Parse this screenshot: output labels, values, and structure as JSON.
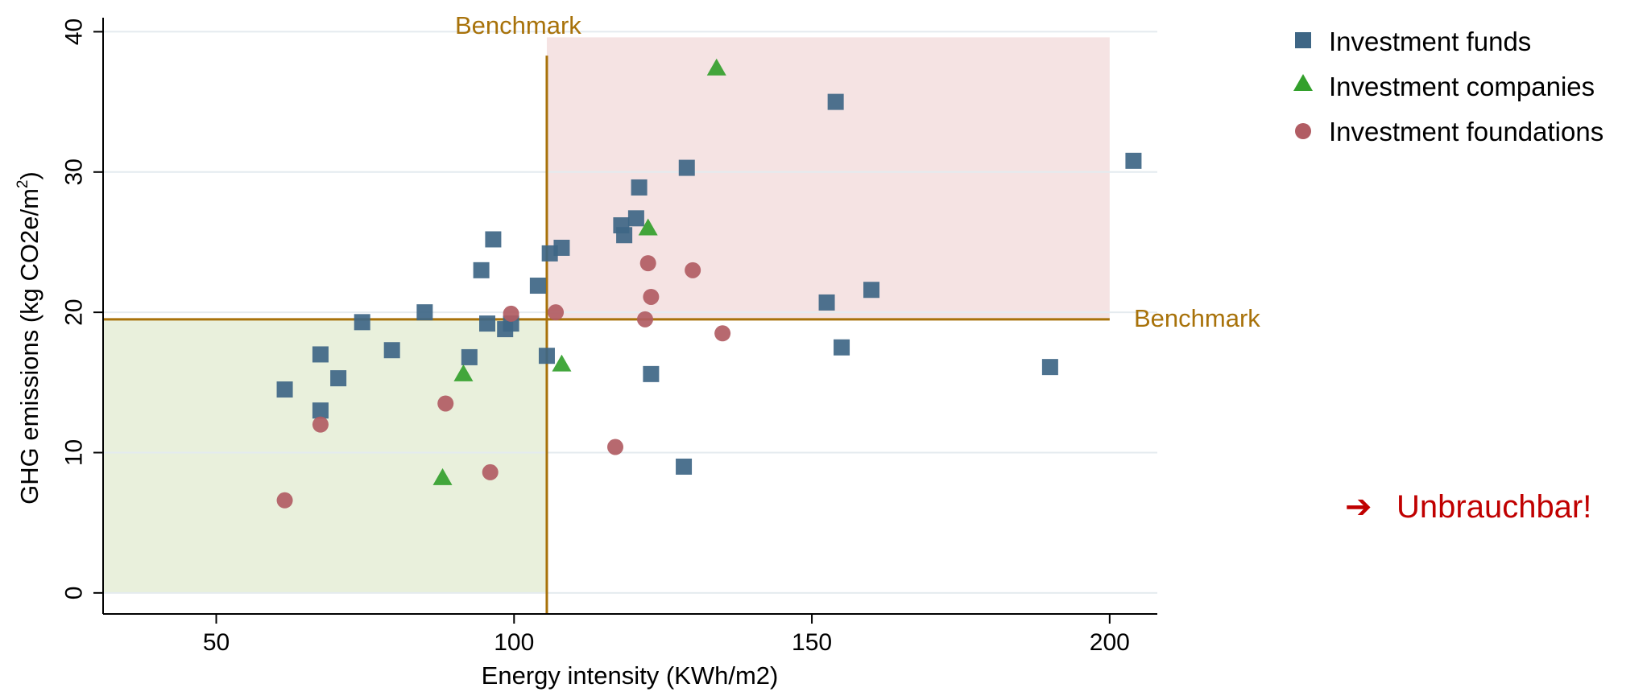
{
  "chart_data": {
    "type": "scatter",
    "xlabel": "Energy intensity (KWh/m2)",
    "ylabel_main": "GHG emissions (kg CO2e/m",
    "ylabel_sup": "2",
    "ylabel_close": ")",
    "xlim": [
      31,
      208
    ],
    "ylim": [
      -1.5,
      41
    ],
    "x_ticks": [
      "50",
      "100",
      "150",
      "200"
    ],
    "x_tick_values": [
      50,
      100,
      150,
      200
    ],
    "y_ticks": [
      "0",
      "10",
      "20",
      "30",
      "40"
    ],
    "y_tick_values": [
      0,
      10,
      20,
      30,
      40
    ],
    "grid": "horizontal",
    "legend_position": "top-right",
    "benchmark": {
      "x": 105.5,
      "y": 19.5,
      "x_line_ymax": 38.3,
      "y_line_xmax": 200,
      "label_vertical": "Benchmark",
      "label_horizontal": "Benchmark",
      "color": "#a8720a"
    },
    "regions": {
      "good": {
        "x": [
          31,
          105.5
        ],
        "y": [
          0,
          19.5
        ],
        "color": "#e9f0dc"
      },
      "bad": {
        "x": [
          105.5,
          200
        ],
        "y": [
          19.5,
          39.6
        ],
        "color": "#f5e3e3"
      }
    },
    "series": [
      {
        "name": "Investment funds",
        "marker": "square",
        "color": "#3e6685",
        "points": [
          [
            61.5,
            14.5
          ],
          [
            67.5,
            13.0
          ],
          [
            67.5,
            17.0
          ],
          [
            70.5,
            15.3
          ],
          [
            74.5,
            19.3
          ],
          [
            79.5,
            17.3
          ],
          [
            85,
            20.0
          ],
          [
            92.5,
            16.8
          ],
          [
            94.5,
            23.0
          ],
          [
            95.5,
            19.2
          ],
          [
            96.5,
            25.2
          ],
          [
            98.5,
            18.8
          ],
          [
            99.5,
            19.2
          ],
          [
            104,
            21.9
          ],
          [
            105.5,
            16.9
          ],
          [
            106,
            24.2
          ],
          [
            108,
            24.6
          ],
          [
            118,
            26.2
          ],
          [
            118.5,
            25.5
          ],
          [
            120.5,
            26.7
          ],
          [
            121,
            28.9
          ],
          [
            123,
            15.6
          ],
          [
            128.5,
            9.0
          ],
          [
            129,
            30.3
          ],
          [
            152.5,
            20.7
          ],
          [
            154,
            35.0
          ],
          [
            155,
            17.5
          ],
          [
            160,
            21.6
          ],
          [
            190,
            16.1
          ],
          [
            204,
            30.8
          ]
        ]
      },
      {
        "name": "Investment companies",
        "marker": "triangle",
        "color": "#33a02c",
        "points": [
          [
            88,
            8.2
          ],
          [
            91.5,
            15.6
          ],
          [
            108,
            16.3
          ],
          [
            122.5,
            26.0
          ],
          [
            134,
            37.4
          ]
        ]
      },
      {
        "name": "Investment foundations",
        "marker": "circle",
        "color": "#b15c63",
        "points": [
          [
            61.5,
            6.6
          ],
          [
            67.5,
            12.0
          ],
          [
            88.5,
            13.5
          ],
          [
            96,
            8.6
          ],
          [
            99.5,
            19.9
          ],
          [
            107,
            20.0
          ],
          [
            117,
            10.4
          ],
          [
            122,
            19.5
          ],
          [
            122.5,
            23.5
          ],
          [
            123,
            21.1
          ],
          [
            130,
            23.0
          ],
          [
            135,
            18.5
          ]
        ]
      }
    ]
  },
  "note": {
    "arrow": "➔",
    "text": "Unbrauchbar!",
    "color": "#c00000"
  }
}
